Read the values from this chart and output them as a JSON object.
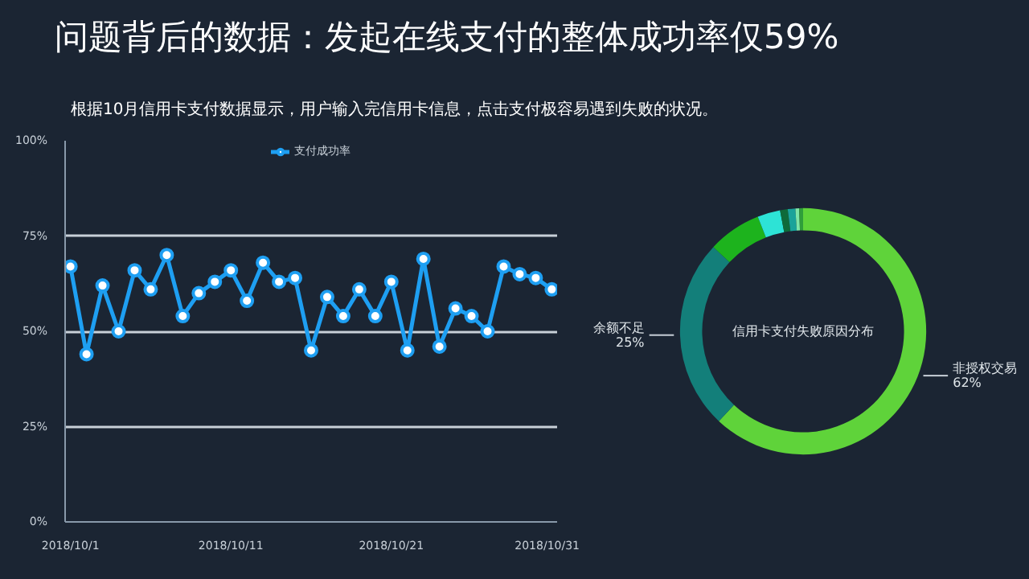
{
  "chart_data": [
    {
      "type": "line",
      "title": "问题背后的数据：发起在线支付的整体成功率仅59%",
      "subtitle": "根据10月信用卡支付数据显示，用户输入完信用卡信息，点击支付极容易遇到失败的状况。",
      "x": [
        "2018-10-01",
        "2018-10-02",
        "2018-10-03",
        "2018-10-04",
        "2018-10-05",
        "2018-10-06",
        "2018-10-07",
        "2018-10-08",
        "2018-10-09",
        "2018-10-10",
        "2018-10-11",
        "2018-10-12",
        "2018-10-13",
        "2018-10-14",
        "2018-10-15",
        "2018-10-16",
        "2018-10-17",
        "2018-10-18",
        "2018-10-19",
        "2018-10-20",
        "2018-10-21",
        "2018-10-22",
        "2018-10-23",
        "2018-10-24",
        "2018-10-25",
        "2018-10-26",
        "2018-10-27",
        "2018-10-28",
        "2018-10-29",
        "2018-10-30",
        "2018-10-31"
      ],
      "series": [
        {
          "name": "支付成功率",
          "color": "#1e9ff2",
          "values": [
            67,
            44,
            62,
            50,
            66,
            61,
            70,
            54,
            60,
            63,
            66,
            58,
            68,
            63,
            64,
            45,
            59,
            54,
            61,
            54,
            63,
            45,
            69,
            46,
            56,
            54,
            50,
            67,
            65,
            64,
            61
          ]
        }
      ],
      "xlim": [
        "2018-09-30T16:00",
        "2018-10-31T08:00"
      ],
      "xticks": [
        {
          "value": "2018-10-01",
          "label": "2018/10/1"
        },
        {
          "value": "2018-10-11",
          "label": "2018/10/11"
        },
        {
          "value": "2018-10-21",
          "label": "2018/10/21"
        },
        {
          "value": "2018-10-31",
          "label": "2018/10/31"
        }
      ],
      "ylim": [
        0,
        100
      ],
      "yticks": [
        {
          "value": 0,
          "label": "0%"
        },
        {
          "value": 25,
          "label": "25%"
        },
        {
          "value": 50,
          "label": "50%"
        },
        {
          "value": 75,
          "label": "75%"
        },
        {
          "value": 100,
          "label": "100%"
        }
      ],
      "grid": "y",
      "legend": "top",
      "marker": "circle",
      "line_style": "solid"
    },
    {
      "type": "donut",
      "title": "信用卡支付失败原因分布",
      "categories": [
        "非授权交易",
        "余额不足",
        null,
        null,
        null,
        null,
        null,
        null
      ],
      "values": [
        62,
        25,
        7,
        3,
        1,
        1,
        0.5,
        0.5
      ],
      "colors": [
        "#5fd33a",
        "#137f7a",
        "#1db31d",
        "#2de3d6",
        "#0e6b3a",
        "#1aa39a",
        "#7fe6a8",
        "#2f9e3a"
      ],
      "value_labels": [
        "62%",
        "25%",
        null,
        null,
        null,
        null,
        null,
        null
      ]
    }
  ]
}
